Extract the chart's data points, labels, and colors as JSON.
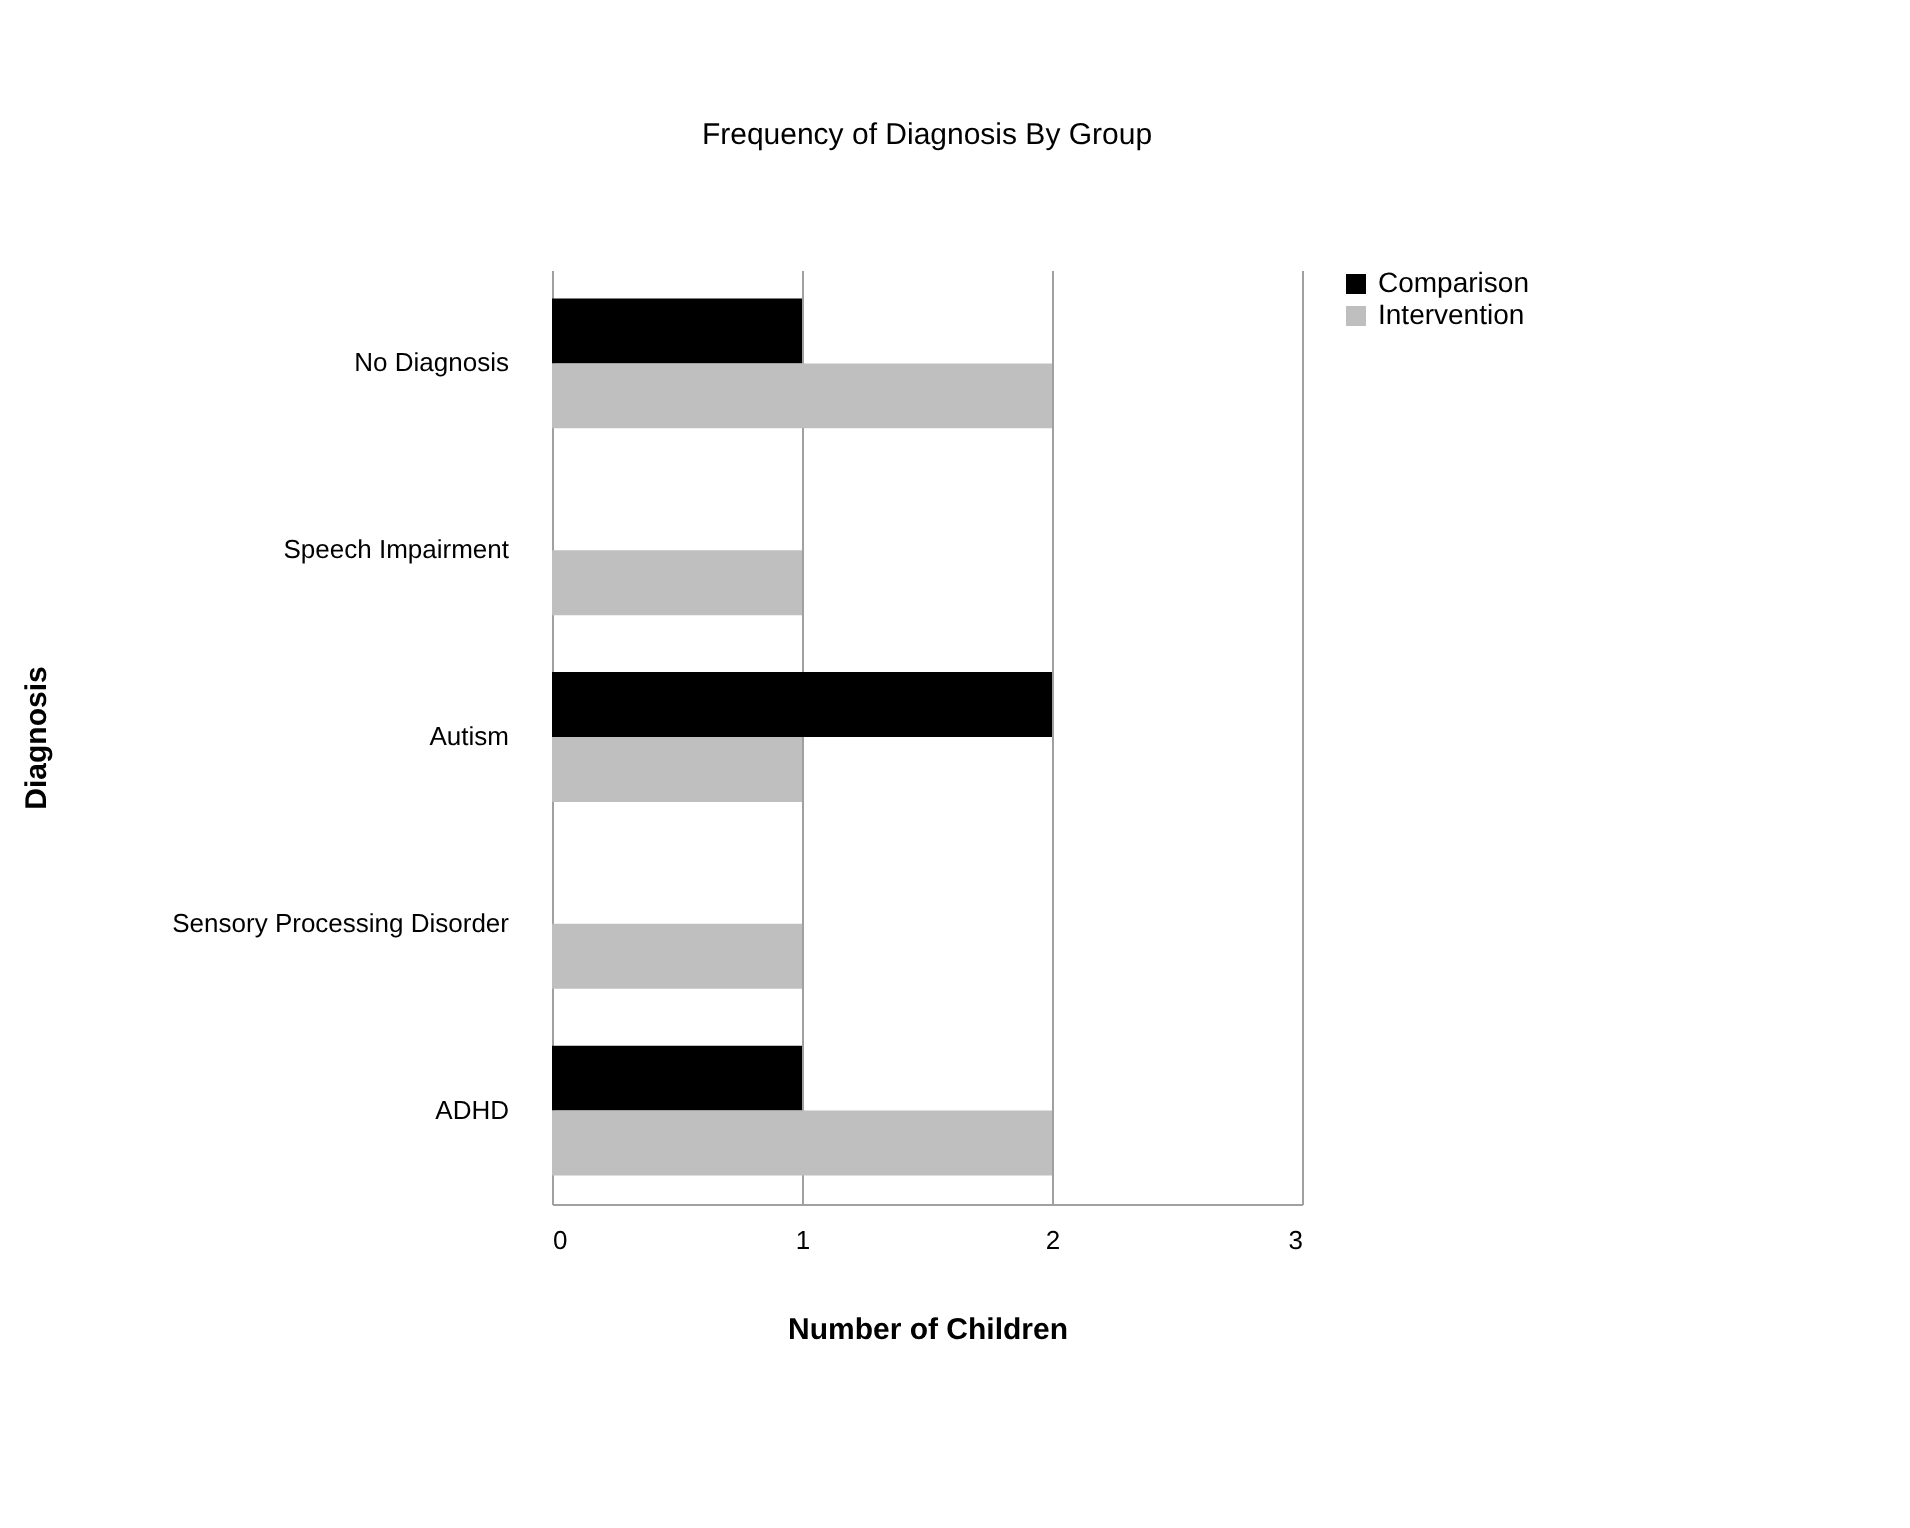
{
  "chart_data": {
    "type": "bar",
    "orientation": "horizontal",
    "title": "Frequency of Diagnosis By Group",
    "xlabel": "Number of Children",
    "ylabel": "Diagnosis",
    "categories": [
      "No Diagnosis",
      "Speech Impairment",
      "Autism",
      "Sensory Processing Disorder",
      "ADHD"
    ],
    "series": [
      {
        "name": "Comparison",
        "color": "#000000",
        "values": [
          1,
          0,
          2,
          0,
          1
        ]
      },
      {
        "name": "Intervention",
        "color": "#bfbfbf",
        "values": [
          2,
          1,
          1,
          1,
          2
        ]
      }
    ],
    "xlim": [
      0,
      3
    ],
    "xticks": [
      0,
      1,
      2,
      3
    ],
    "grid": "x",
    "legend": "right"
  }
}
